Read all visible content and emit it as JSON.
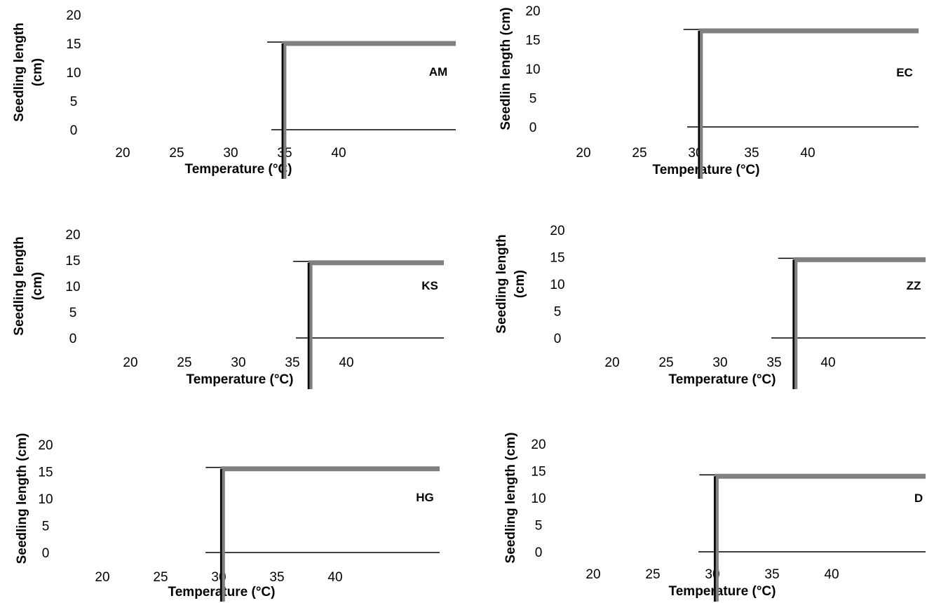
{
  "chart_data": [
    {
      "type": "line",
      "panel_label": "AM",
      "xlabel": "Temperature (°C)",
      "ylabel": [
        "Seedling length",
        "(cm)"
      ],
      "x_ticks": [
        20,
        25,
        30,
        35,
        40
      ],
      "y_ticks": [
        0,
        5,
        10,
        15,
        20
      ],
      "ylim": [
        0,
        20
      ],
      "series": [
        {
          "color": "#808080",
          "points": [
            [
              34.8,
              15
            ],
            [
              34.8,
              -9
            ],
            [
              48,
              15
            ]
          ]
        },
        {
          "color": "#000000",
          "points": [
            [
              34.8,
              15
            ],
            [
              34.8,
              -9
            ]
          ]
        }
      ]
    },
    {
      "type": "line",
      "panel_label": "EC",
      "xlabel": "Temperature (°C)",
      "ylabel": [
        "Seedlin length (cm)"
      ],
      "x_ticks": [
        20,
        25,
        30,
        35,
        40
      ],
      "y_ticks": [
        0,
        5,
        10,
        15,
        20
      ],
      "ylim": [
        0,
        20
      ],
      "series": [
        {
          "color": "#808080",
          "points": [
            [
              30.3,
              16.5
            ],
            [
              30.3,
              -9
            ],
            [
              48,
              16.5
            ]
          ]
        },
        {
          "color": "#000000",
          "points": [
            [
              30.3,
              16.5
            ],
            [
              30.3,
              -9
            ]
          ]
        }
      ]
    },
    {
      "type": "line",
      "panel_label": "KS",
      "xlabel": "Temperature (°C)",
      "ylabel": [
        "Seedling length",
        "(cm)"
      ],
      "x_ticks": [
        20,
        25,
        30,
        35,
        40
      ],
      "y_ticks": [
        0,
        5,
        10,
        15,
        20
      ],
      "ylim": [
        0,
        20
      ],
      "series": [
        {
          "color": "#808080",
          "points": [
            [
              36.5,
              14.5
            ],
            [
              36.5,
              -8
            ],
            [
              48,
              14.5
            ]
          ]
        },
        {
          "color": "#000000",
          "points": [
            [
              36.5,
              14.5
            ],
            [
              36.5,
              -8
            ]
          ]
        }
      ]
    },
    {
      "type": "line",
      "panel_label": "ZZ",
      "xlabel": "Temperature (°C)",
      "ylabel": [
        "Seedling length",
        "(cm)"
      ],
      "x_ticks": [
        20,
        25,
        30,
        35,
        40
      ],
      "y_ticks": [
        0,
        5,
        10,
        15,
        20
      ],
      "ylim": [
        0,
        20
      ],
      "series": [
        {
          "color": "#808080",
          "points": [
            [
              36.8,
              14.5
            ],
            [
              36.8,
              -8
            ],
            [
              48,
              14.5
            ]
          ]
        },
        {
          "color": "#000000",
          "points": [
            [
              36.8,
              14.5
            ],
            [
              36.8,
              -8
            ]
          ]
        }
      ]
    },
    {
      "type": "line",
      "panel_label": "HG",
      "xlabel": "Temperature (°C)",
      "ylabel": [
        "Seedling length (cm)"
      ],
      "x_ticks": [
        20,
        25,
        30,
        35,
        40
      ],
      "y_ticks": [
        0,
        5,
        10,
        15,
        20
      ],
      "ylim": [
        0,
        20
      ],
      "series": [
        {
          "color": "#808080",
          "points": [
            [
              30.2,
              15.5
            ],
            [
              30.2,
              -9
            ],
            [
              48,
              15.5
            ]
          ]
        },
        {
          "color": "#000000",
          "points": [
            [
              30.2,
              15.5
            ],
            [
              30.2,
              -9
            ]
          ]
        }
      ]
    },
    {
      "type": "line",
      "panel_label": "D",
      "xlabel": "Temperature (°C)",
      "ylabel": [
        "Seedling length (cm)"
      ],
      "x_ticks": [
        20,
        25,
        30,
        35,
        40
      ],
      "y_ticks": [
        0,
        5,
        10,
        15,
        20
      ],
      "ylim": [
        0,
        20
      ],
      "series": [
        {
          "color": "#808080",
          "points": [
            [
              30.2,
              14
            ],
            [
              30.2,
              -9
            ],
            [
              48,
              14
            ]
          ]
        },
        {
          "color": "#000000",
          "points": [
            [
              30.2,
              14
            ],
            [
              30.2,
              -9
            ]
          ]
        }
      ]
    }
  ]
}
